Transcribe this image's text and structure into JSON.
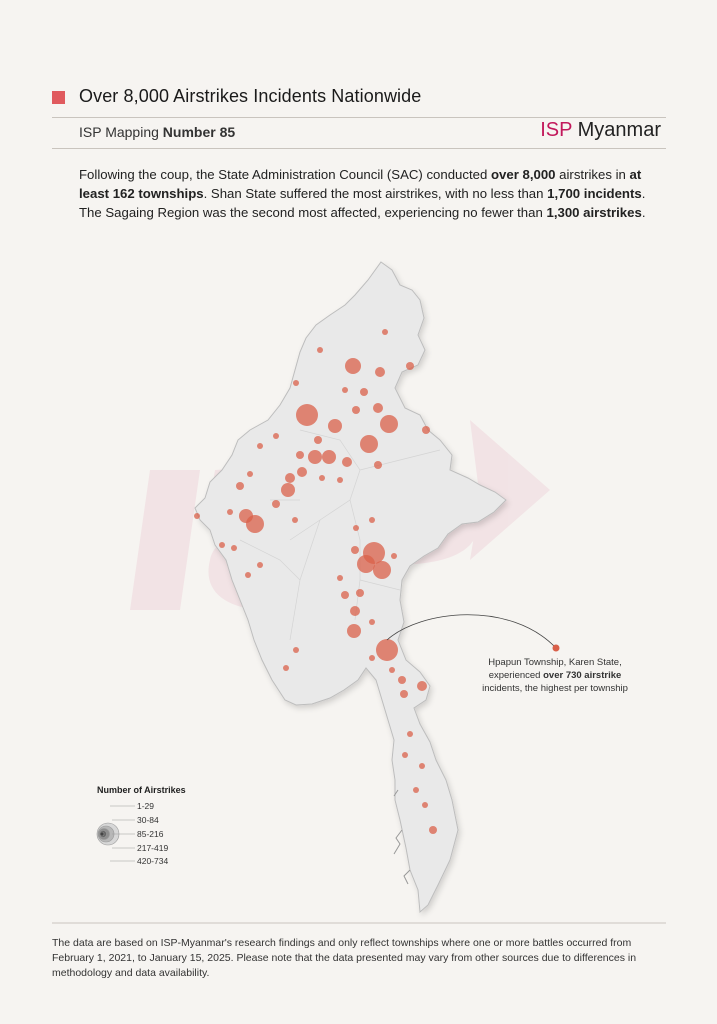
{
  "header": {
    "title": "Over 8,000 Airstrikes Incidents Nationwide",
    "subtitle_prefix": "ISP Mapping ",
    "subtitle_number": "Number 85",
    "logo_isp": "ISP",
    "logo_rest": " Myanmar"
  },
  "intro": {
    "p1": "Following the coup, the State Administration Council (SAC) conducted ",
    "b1": "over 8,000",
    "p2": " airstrikes in ",
    "b2": "at least 162 townships",
    "p3": ". Shan State suffered the most airstrikes, with no less than ",
    "b3": "1,700 incidents",
    "p4": ". The Sagaing Region was the second most affected, experiencing no fewer than ",
    "b4": "1,300 airstrikes",
    "p5": "."
  },
  "callout": {
    "line1": "Hpapun Township, Karen State,",
    "line2a": "experienced ",
    "line2b": "over 730 airstrike",
    "line3": "incidents, the highest per township"
  },
  "legend": {
    "title": "Number of Airstrikes",
    "items": [
      "1-29",
      "30-84",
      "85-216",
      "217-419",
      "420-734"
    ]
  },
  "footer": {
    "text": "The data are based on ISP-Myanmar's research findings and only reflect townships where one or more battles occurred from February 1, 2021, to January 15, 2025. Please note that the data presented may vary from other sources due to differences in methodology and data availability."
  },
  "colors": {
    "accent": "#e05a5e",
    "bubble": "#d9604a",
    "logo": "#c2185b"
  }
}
